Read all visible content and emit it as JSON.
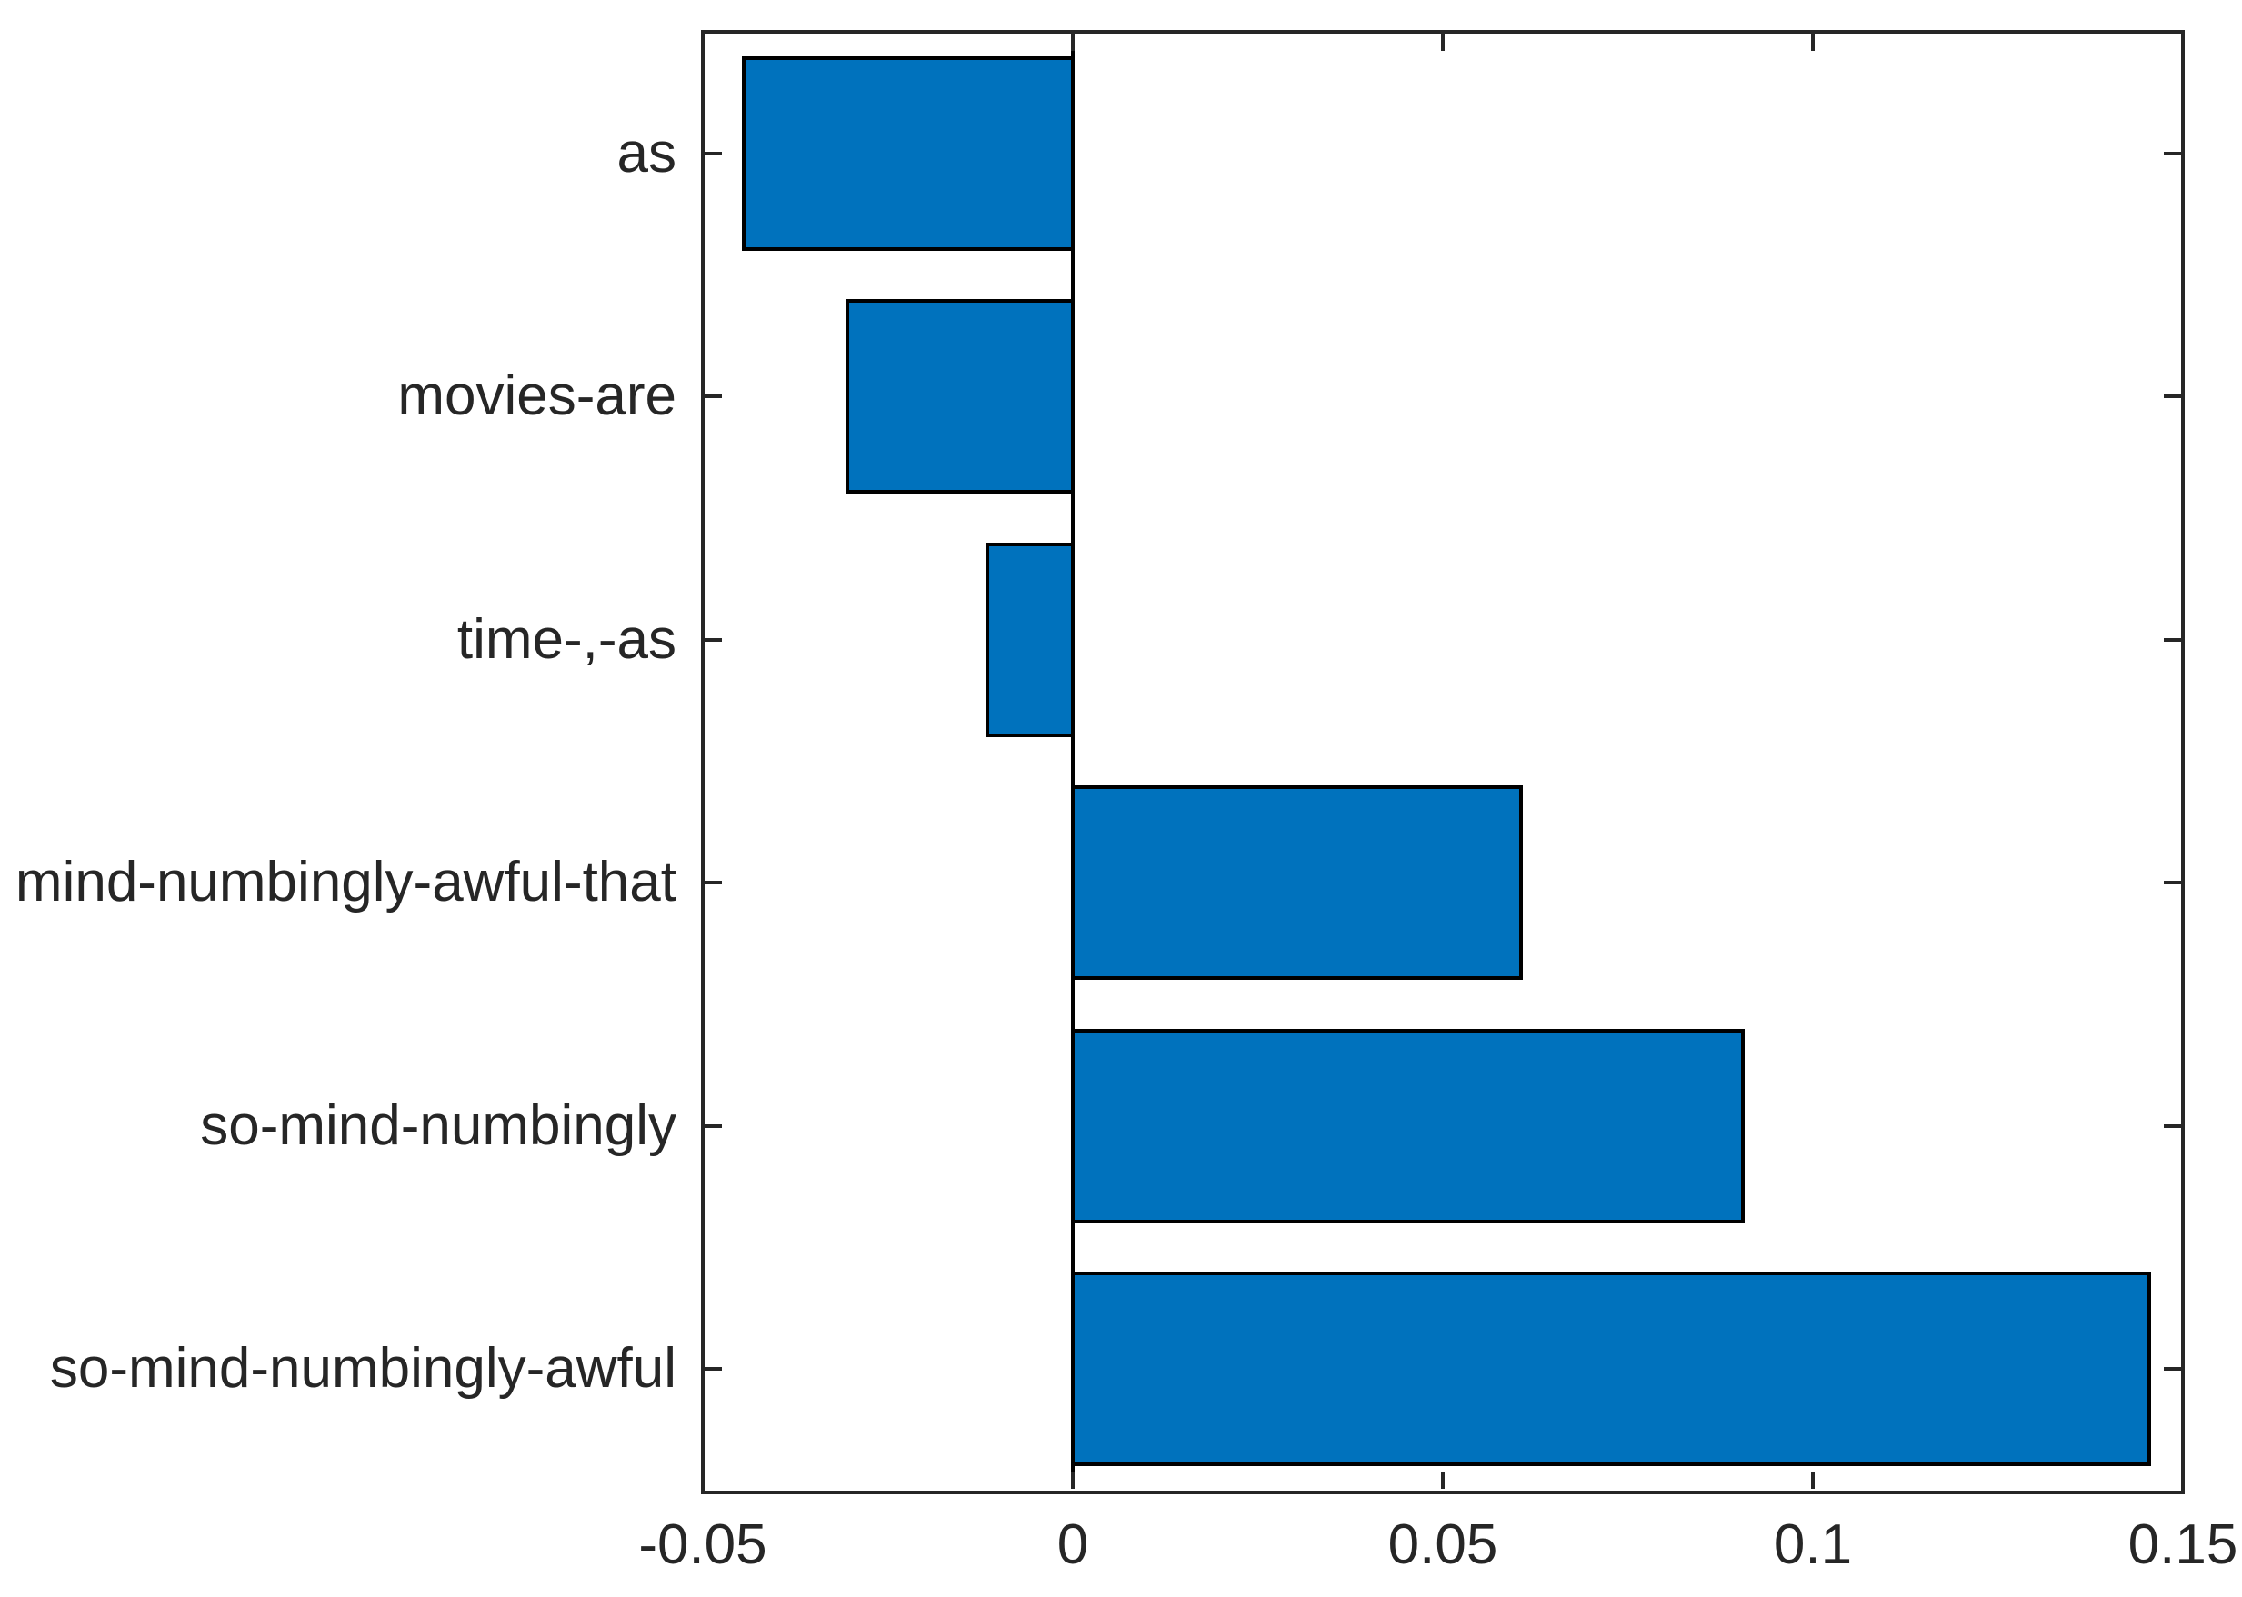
{
  "figure": {
    "background_color": "#FFFFFF",
    "title": "",
    "xlabel": "",
    "ylabel": ""
  },
  "chart_data": {
    "type": "bar",
    "orientation": "horizontal",
    "categories": [
      "as",
      "movies-are",
      "time-,-as",
      "mind-numbingly-awful-that",
      "so-mind-numbingly",
      "so-mind-numbingly-awful"
    ],
    "values": [
      -0.045,
      -0.031,
      -0.012,
      0.061,
      0.091,
      0.146
    ],
    "xlim": [
      -0.05,
      0.15
    ],
    "xticks": [
      -0.05,
      0,
      0.05,
      0.1,
      0.15
    ],
    "xtick_labels": [
      "-0.05",
      "0",
      "0.05",
      "0.1",
      "0.15"
    ],
    "baseline": 0,
    "bar_color": "#0072BD",
    "bar_edge_color": "#000000",
    "axis_color": "#262626",
    "text_color": "#262626",
    "zero_line_color": "#000000",
    "grid": false,
    "legend": null,
    "bar_relative_height": 0.8
  }
}
